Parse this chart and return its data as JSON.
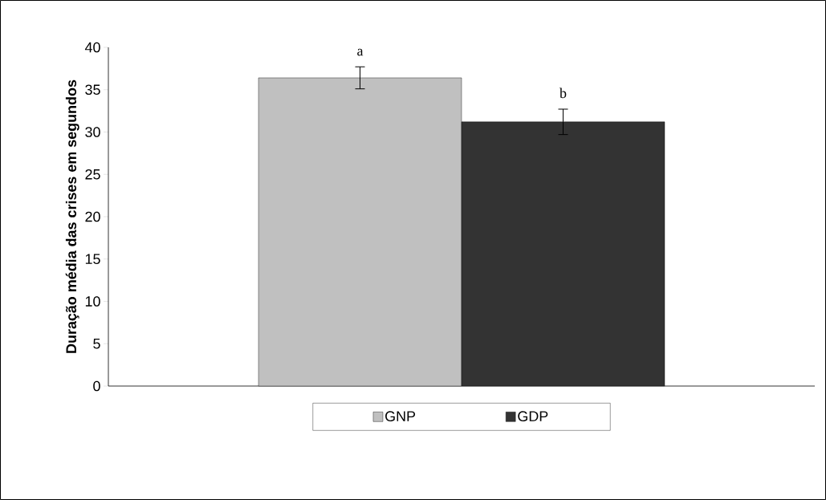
{
  "chart_data": {
    "type": "bar",
    "ylabel": "Duração média das crises em segundos",
    "categories": [
      null
    ],
    "series": [
      {
        "name": "GNP",
        "color": "#c0c0c0",
        "values": [
          36.4
        ],
        "errors": [
          1.3
        ]
      },
      {
        "name": "GDP",
        "color": "#333333",
        "values": [
          31.2
        ],
        "errors": [
          1.5
        ]
      }
    ],
    "ylim": [
      0,
      40
    ],
    "yticks": [
      0,
      5,
      10,
      15,
      20,
      25,
      30,
      35,
      40
    ],
    "legend": "bottom",
    "annotations": [
      "a",
      "b"
    ]
  }
}
